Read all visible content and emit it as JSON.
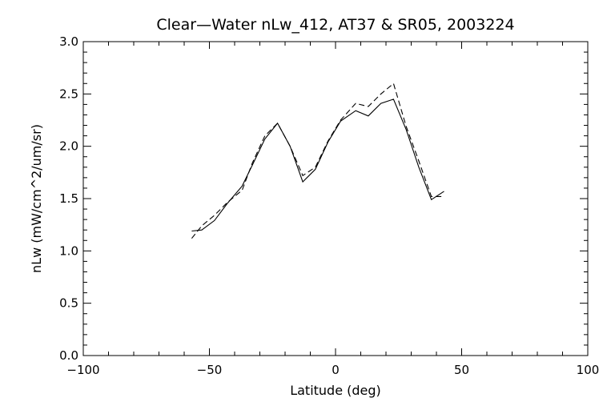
{
  "chart_data": {
    "type": "line",
    "title": "Clear—Water nLw_412, AT37 & SR05, 2003224",
    "xlabel": "Latitude (deg)",
    "ylabel": "nLw (mW/cm^2/um/sr)",
    "xlim": [
      -100,
      100
    ],
    "ylim": [
      0.0,
      3.0
    ],
    "x_ticks": [
      "−100",
      "−50",
      "0",
      "50",
      "100"
    ],
    "y_ticks": [
      "0.0",
      "0.5",
      "1.0",
      "1.5",
      "2.0",
      "2.5",
      "3.0"
    ],
    "grid": false,
    "series": [
      {
        "style": "solid",
        "color": "#000000",
        "x": [
          -57,
          -53,
          -48,
          -43,
          -37,
          -33,
          -28,
          -23,
          -18,
          -13,
          -8,
          -3,
          2,
          8,
          13,
          18,
          23,
          28,
          33,
          38,
          43
        ],
        "y": [
          1.19,
          1.2,
          1.29,
          1.45,
          1.62,
          1.82,
          2.07,
          2.22,
          2.0,
          1.66,
          1.78,
          2.04,
          2.24,
          2.34,
          2.29,
          2.41,
          2.45,
          2.16,
          1.8,
          1.49,
          1.57
        ]
      },
      {
        "style": "dashed",
        "color": "#000000",
        "x": [
          -57,
          -53,
          -48,
          -43,
          -37,
          -33,
          -28,
          -23,
          -18,
          -13,
          -8,
          -3,
          2,
          8,
          13,
          18,
          23,
          28,
          33,
          38,
          43
        ],
        "y": [
          1.12,
          1.24,
          1.34,
          1.46,
          1.58,
          1.84,
          2.1,
          2.22,
          2.0,
          1.72,
          1.8,
          2.05,
          2.25,
          2.41,
          2.38,
          2.5,
          2.6,
          2.19,
          1.86,
          1.52,
          1.52
        ]
      }
    ]
  }
}
